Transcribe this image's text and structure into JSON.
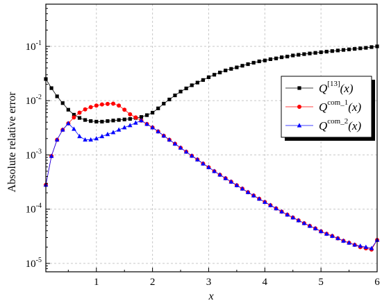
{
  "chart_data": {
    "type": "line",
    "xlabel": "x",
    "ylabel": "Absolute relative error",
    "xscale": "linear",
    "yscale": "log",
    "xlim": [
      0.1,
      6
    ],
    "ylim": [
      7e-06,
      0.6
    ],
    "x_ticks": [
      "1",
      "2",
      "3",
      "4",
      "5",
      "6"
    ],
    "y_ticks": [
      {
        "base": "10",
        "exp": "-5"
      },
      {
        "base": "10",
        "exp": "-4"
      },
      {
        "base": "10",
        "exp": "-3"
      },
      {
        "base": "10",
        "exp": "-2"
      },
      {
        "base": "10",
        "exp": "-1"
      }
    ],
    "grid": true,
    "legend_position": "right",
    "series": [
      {
        "name": "Q^[13](x)",
        "legend": {
          "main": "Q",
          "sup": "[13]",
          "arg": "(x)"
        },
        "color": "#000000",
        "marker": "square",
        "x": [
          0.1,
          0.2,
          0.3,
          0.4,
          0.5,
          0.6,
          0.7,
          0.8,
          0.9,
          1.0,
          1.1,
          1.2,
          1.3,
          1.4,
          1.5,
          1.6,
          1.7,
          1.8,
          1.9,
          2.0,
          2.1,
          2.2,
          2.3,
          2.4,
          2.5,
          2.6,
          2.7,
          2.8,
          2.9,
          3.0,
          3.1,
          3.2,
          3.3,
          3.4,
          3.5,
          3.6,
          3.7,
          3.8,
          3.9,
          4.0,
          4.1,
          4.2,
          4.3,
          4.4,
          4.5,
          4.6,
          4.7,
          4.8,
          4.9,
          5.0,
          5.1,
          5.2,
          5.3,
          5.4,
          5.5,
          5.6,
          5.7,
          5.8,
          5.9,
          6.0
        ],
        "y": [
          0.025,
          0.017,
          0.012,
          0.009,
          0.0068,
          0.0055,
          0.0048,
          0.0044,
          0.0042,
          0.0041,
          0.0041,
          0.0042,
          0.0043,
          0.0044,
          0.0045,
          0.0046,
          0.0048,
          0.005,
          0.0054,
          0.006,
          0.0072,
          0.0088,
          0.0105,
          0.0125,
          0.0147,
          0.0168,
          0.0192,
          0.0215,
          0.024,
          0.027,
          0.03,
          0.033,
          0.036,
          0.0385,
          0.041,
          0.044,
          0.047,
          0.05,
          0.053,
          0.055,
          0.058,
          0.06,
          0.063,
          0.065,
          0.068,
          0.07,
          0.072,
          0.074,
          0.076,
          0.078,
          0.08,
          0.082,
          0.084,
          0.086,
          0.088,
          0.09,
          0.092,
          0.094,
          0.097,
          0.1
        ]
      },
      {
        "name": "Q^com_1(x)",
        "legend": {
          "main": "Q",
          "sup": "com_1",
          "arg": "(x)"
        },
        "color": "#ff0000",
        "marker": "circle",
        "x": [
          0.1,
          0.2,
          0.3,
          0.4,
          0.5,
          0.6,
          0.7,
          0.8,
          0.9,
          1.0,
          1.1,
          1.2,
          1.3,
          1.4,
          1.5,
          1.6,
          1.7,
          1.8,
          1.9,
          2.0,
          2.1,
          2.2,
          2.3,
          2.4,
          2.5,
          2.6,
          2.7,
          2.8,
          2.9,
          3.0,
          3.1,
          3.2,
          3.3,
          3.4,
          3.5,
          3.6,
          3.7,
          3.8,
          3.9,
          4.0,
          4.1,
          4.2,
          4.3,
          4.4,
          4.5,
          4.6,
          4.7,
          4.8,
          4.9,
          5.0,
          5.1,
          5.2,
          5.3,
          5.4,
          5.5,
          5.6,
          5.7,
          5.8,
          5.9,
          6.0
        ],
        "y": [
          0.00028,
          0.00095,
          0.0019,
          0.0029,
          0.0038,
          0.0049,
          0.006,
          0.0069,
          0.0076,
          0.0081,
          0.0085,
          0.0087,
          0.0088,
          0.0081,
          0.0068,
          0.0056,
          0.0049,
          0.0043,
          0.0037,
          0.0032,
          0.0027,
          0.00225,
          0.0019,
          0.0016,
          0.00135,
          0.00114,
          0.00096,
          0.00082,
          0.00069,
          0.00059,
          0.0005,
          0.00043,
          0.00037,
          0.00032,
          0.000275,
          0.000238,
          0.000205,
          0.000178,
          0.000155,
          0.000135,
          0.000118,
          0.000103,
          9e-05,
          7.9e-05,
          7e-05,
          6.2e-05,
          5.5e-05,
          4.9e-05,
          4.4e-05,
          3.9e-05,
          3.5e-05,
          3.2e-05,
          2.9e-05,
          2.6e-05,
          2.4e-05,
          2.2e-05,
          2e-05,
          1.9e-05,
          1.8e-05,
          2.7e-05
        ]
      },
      {
        "name": "Q^com_2(x)",
        "legend": {
          "main": "Q",
          "sup": "com_2",
          "arg": "(x)"
        },
        "color": "#0000ff",
        "marker": "triangle",
        "x": [
          0.1,
          0.2,
          0.3,
          0.4,
          0.5,
          0.6,
          0.7,
          0.8,
          0.9,
          1.0,
          1.1,
          1.2,
          1.3,
          1.4,
          1.5,
          1.6,
          1.7,
          1.8,
          1.9,
          2.0,
          2.1,
          2.2,
          2.3,
          2.4,
          2.5,
          2.6,
          2.7,
          2.8,
          2.9,
          3.0,
          3.1,
          3.2,
          3.3,
          3.4,
          3.5,
          3.6,
          3.7,
          3.8,
          3.9,
          4.0,
          4.1,
          4.2,
          4.3,
          4.4,
          4.5,
          4.6,
          4.7,
          4.8,
          4.9,
          5.0,
          5.1,
          5.2,
          5.3,
          5.4,
          5.5,
          5.6,
          5.7,
          5.8,
          5.9,
          6.0
        ],
        "y": [
          0.00028,
          0.00095,
          0.0019,
          0.0029,
          0.0038,
          0.003,
          0.0022,
          0.0019,
          0.0019,
          0.002,
          0.0022,
          0.0024,
          0.0026,
          0.0029,
          0.0032,
          0.0035,
          0.0039,
          0.0043,
          0.0037,
          0.0032,
          0.0027,
          0.00225,
          0.0019,
          0.0016,
          0.00135,
          0.00114,
          0.00096,
          0.00082,
          0.00069,
          0.00059,
          0.0005,
          0.00043,
          0.00037,
          0.00032,
          0.000275,
          0.000238,
          0.000205,
          0.000178,
          0.000155,
          0.000135,
          0.000118,
          0.000103,
          9e-05,
          7.9e-05,
          7e-05,
          6.2e-05,
          5.5e-05,
          4.9e-05,
          4.4e-05,
          3.9e-05,
          3.5e-05,
          3.2e-05,
          2.9e-05,
          2.6e-05,
          2.4e-05,
          2.2e-05,
          2.1e-05,
          2e-05,
          1.9e-05,
          2.7e-05
        ]
      }
    ]
  }
}
